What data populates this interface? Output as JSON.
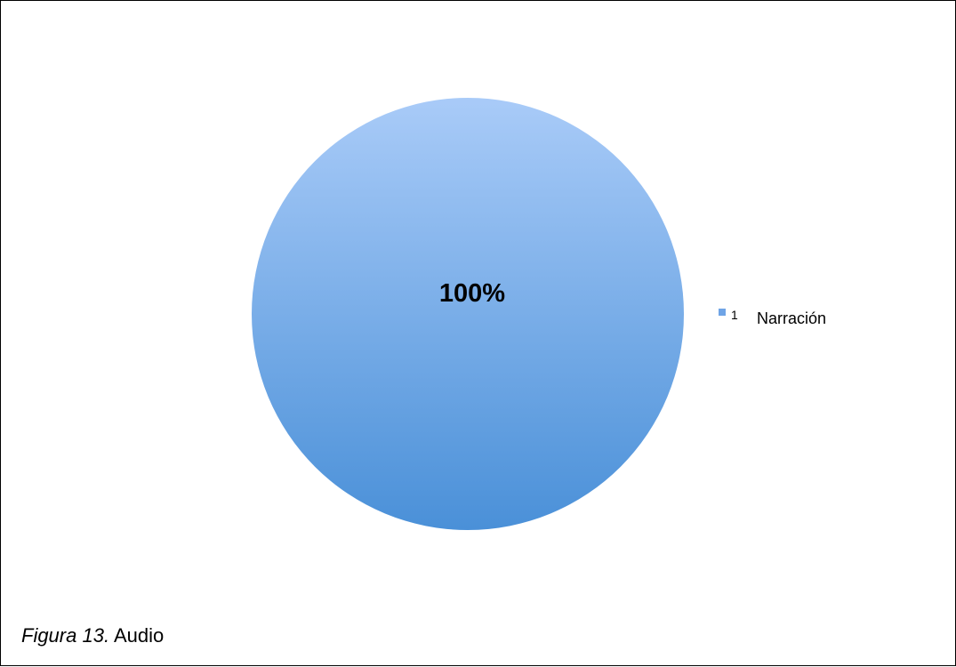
{
  "chart_data": {
    "type": "pie",
    "categories": [
      "Narración"
    ],
    "values": [
      100
    ],
    "data_labels": [
      "100%"
    ],
    "legend": {
      "placement": "right",
      "entries": [
        {
          "index": "1",
          "label": "Narración"
        }
      ]
    },
    "colors": {
      "slice_top": "#a9cbf8",
      "slice_bottom": "#4a90d8",
      "legend_swatch": "#6fa4e6"
    }
  },
  "caption": {
    "prefix": "Figura 13.",
    "text": " Audio"
  }
}
